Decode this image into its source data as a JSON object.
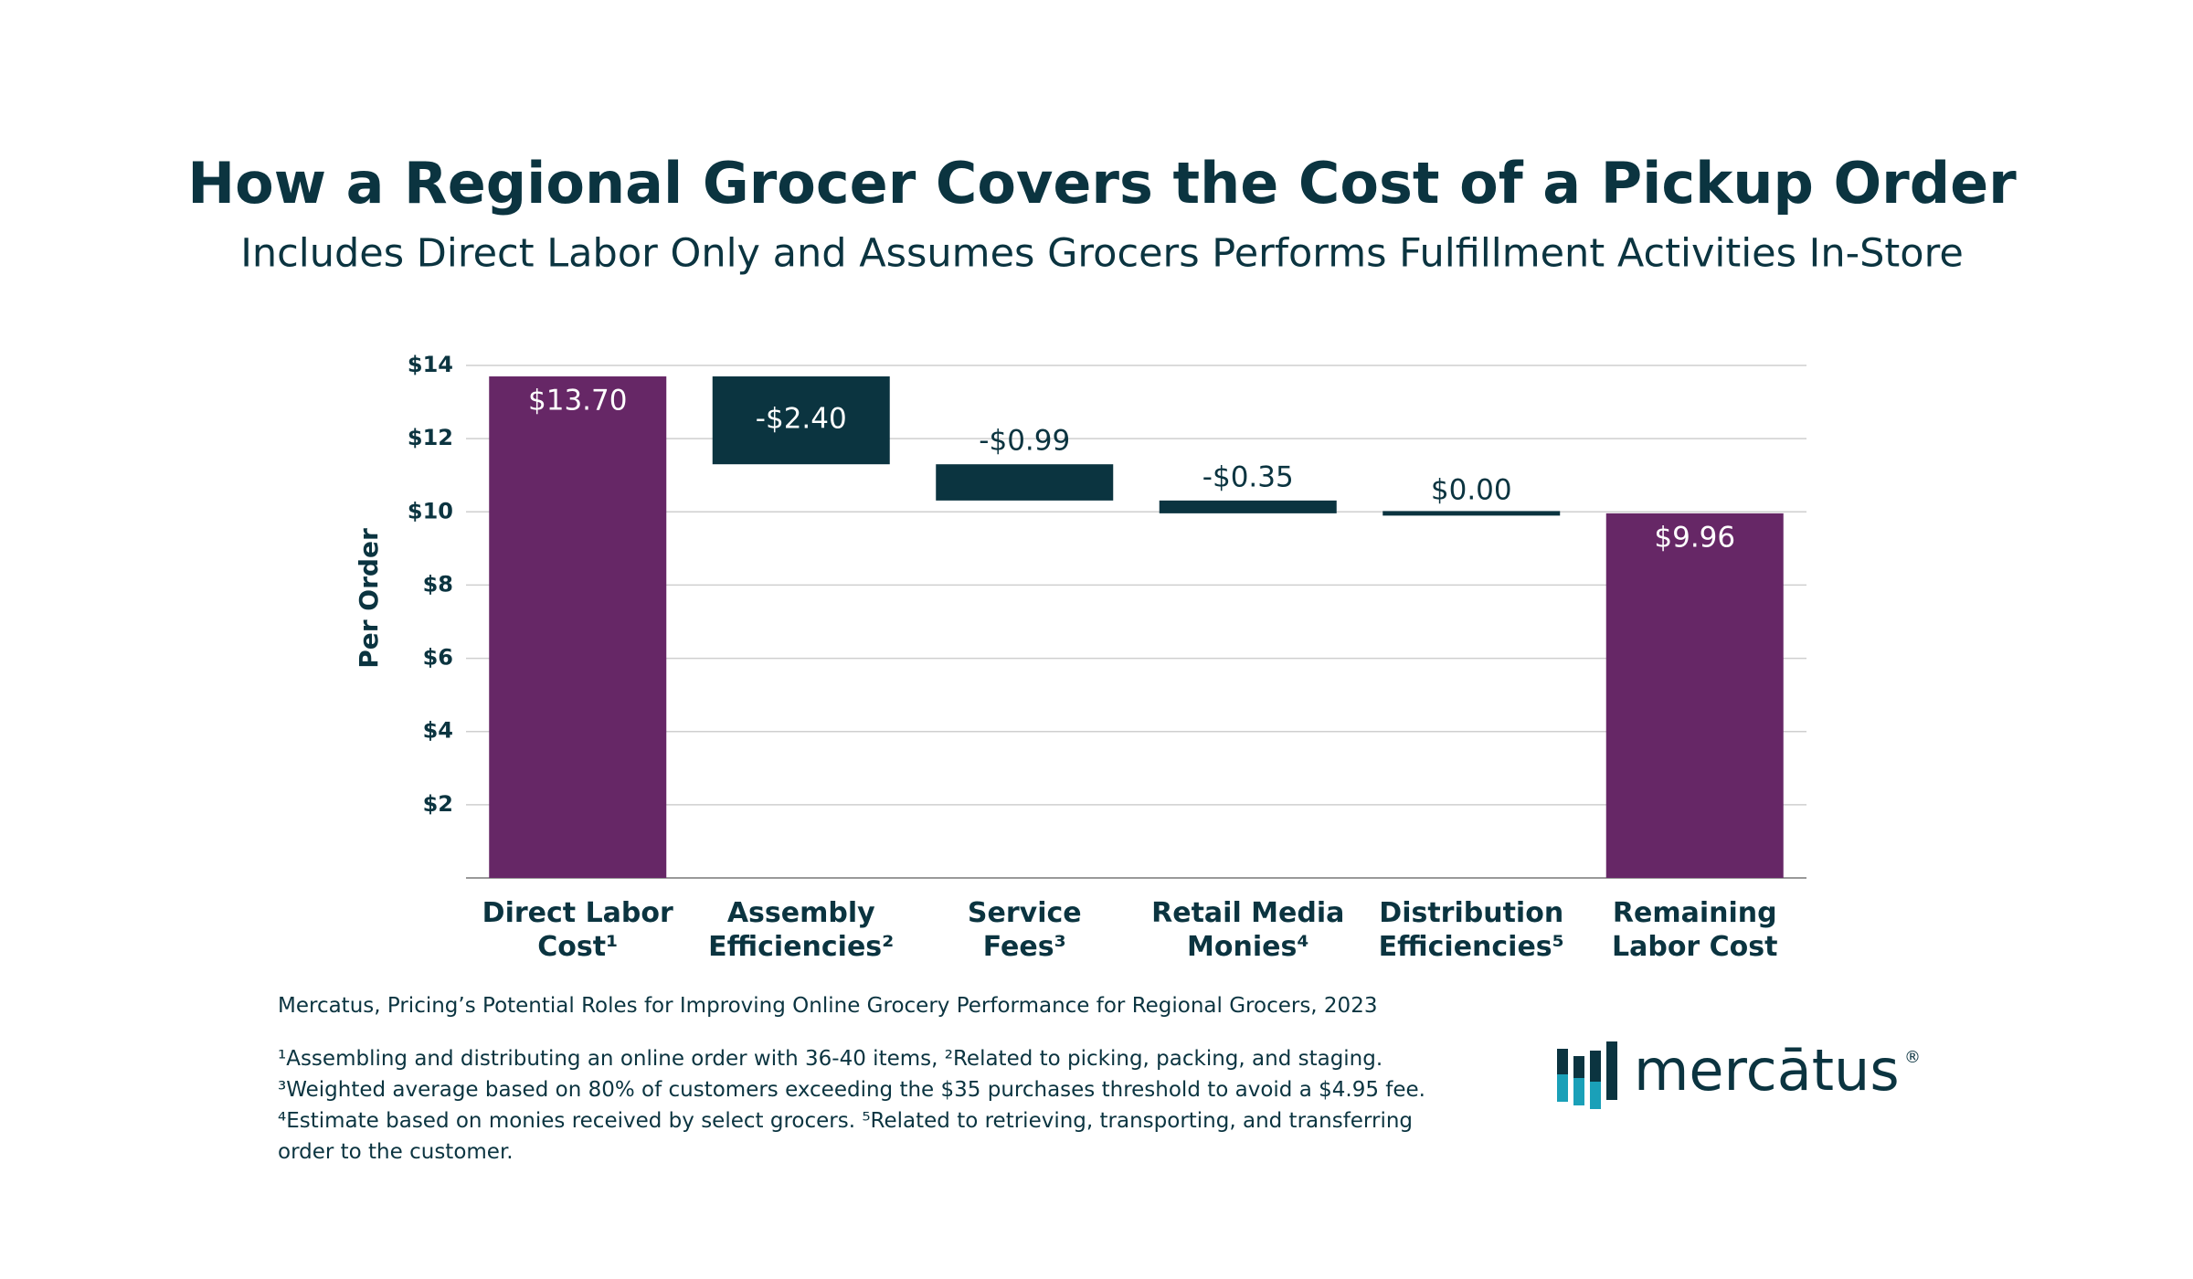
{
  "chart_data": {
    "type": "waterfall",
    "title": "How a Regional Grocer Covers the Cost of a Pickup Order",
    "subtitle": "Includes Direct Labor Only and Assumes Grocers Performs Fulfillment Activities In-Store",
    "y_label": "Per Order",
    "categories": [
      "Direct Labor Cost¹",
      "Assembly Efficiencies²",
      "Service Fees³",
      "Retail Media Monies⁴",
      "Distribution Efficiencies⁵",
      "Remaining Labor Cost"
    ],
    "values": [
      13.7,
      -2.4,
      -0.99,
      -0.35,
      0.0,
      9.96
    ],
    "value_labels": [
      "$13.70",
      "-$2.40",
      "-$0.99",
      "-$0.35",
      "$0.00",
      "$9.96"
    ],
    "total_color": "#662766",
    "change_color": "#0b3440",
    "ylim": [
      0,
      14
    ],
    "yticks": [
      {
        "value": 2,
        "label": "$2"
      },
      {
        "value": 4,
        "label": "$4"
      },
      {
        "value": 6,
        "label": "$6"
      },
      {
        "value": 8,
        "label": "$8"
      },
      {
        "value": 10,
        "label": "$10"
      },
      {
        "value": 12,
        "label": "$12"
      },
      {
        "value": 14,
        "label": "$14"
      }
    ],
    "grid": true
  },
  "source": "Mercatus, Pricing’s Potential Roles for Improving Online Grocery Performance for Regional Grocers, 2023",
  "footnotes": "¹Assembling and distributing an online order with 36-40 items, ²Related to picking, packing, and staging. ³Weighted average based on 80% of customers exceeding the $35 purchases threshold to avoid a $4.95 fee. ⁴Estimate based on monies received by select grocers. ⁵Related to retrieving, transporting, and transferring order to the customer.",
  "logo": {
    "text": "mercātus",
    "mark": "®"
  }
}
